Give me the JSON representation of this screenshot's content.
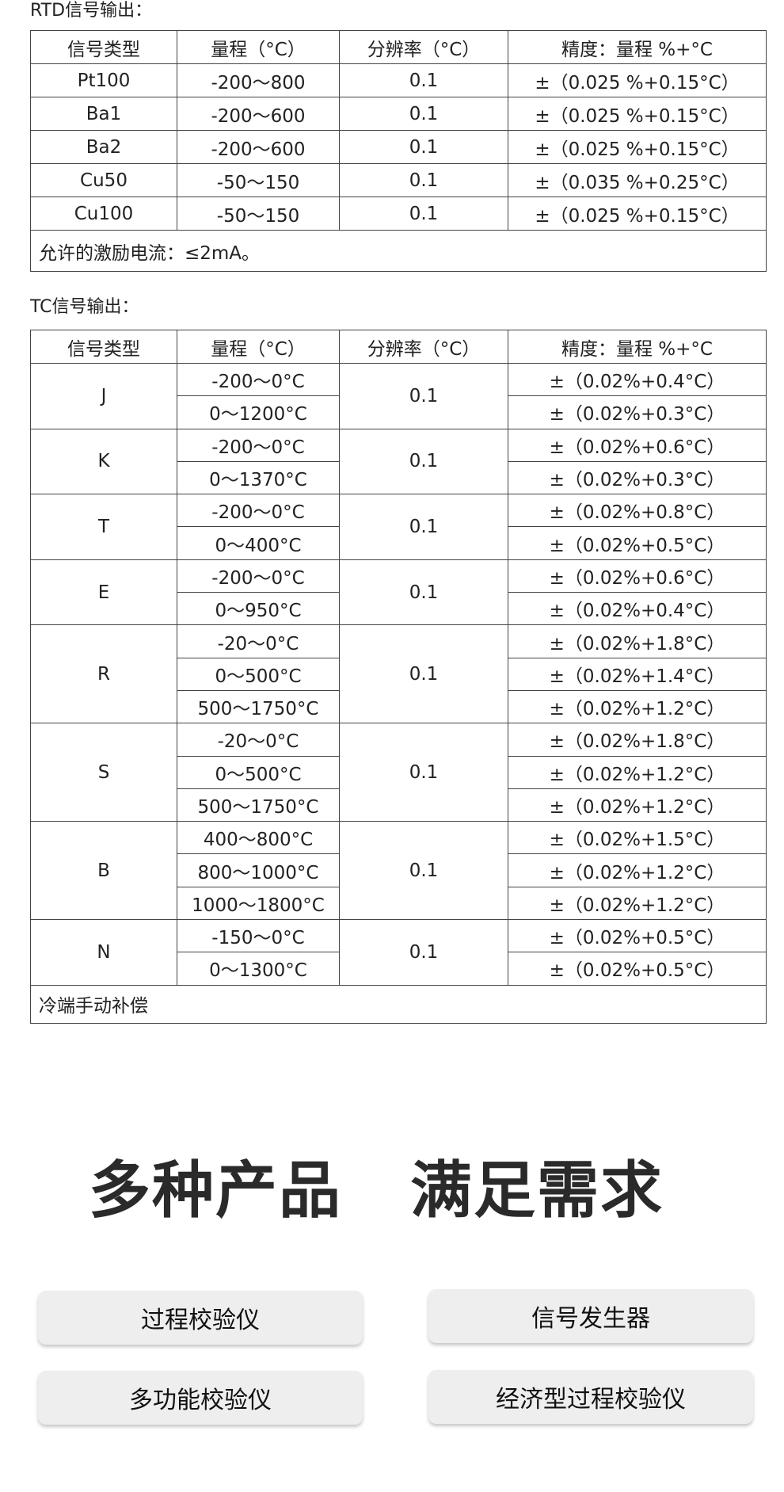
{
  "rtd": {
    "title": "RTD信号输出：",
    "headers": [
      "信号类型",
      "量程（°C）",
      "分辨率（°C）",
      "精度：量程 %+°C"
    ],
    "rows": [
      [
        "Pt100",
        "-200～800",
        "0.1",
        "±（0.025 %+0.15°C）"
      ],
      [
        "Ba1",
        "-200～600",
        "0.1",
        "±（0.025 %+0.15°C）"
      ],
      [
        "Ba2",
        "-200～600",
        "0.1",
        "±（0.025 %+0.15°C）"
      ],
      [
        "Cu50",
        "-50～150",
        "0.1",
        "±（0.035 %+0.25°C）"
      ],
      [
        "Cu100",
        "-50～150",
        "0.1",
        "±（0.025 %+0.15°C）"
      ]
    ],
    "note": "允许的激励电流：≤2mA。"
  },
  "tc": {
    "title": "TC信号输出：",
    "headers": [
      "信号类型",
      "量程（°C）",
      "分辨率（°C）",
      "精度：量程 %+°C"
    ],
    "groups": [
      {
        "type": "J",
        "resolution": "0.1",
        "ranges": [
          [
            "-200～0°C",
            "±（0.02%+0.4°C）"
          ],
          [
            "0～1200°C",
            "±（0.02%+0.3°C）"
          ]
        ]
      },
      {
        "type": "K",
        "resolution": "0.1",
        "ranges": [
          [
            "-200～0°C",
            "±（0.02%+0.6°C）"
          ],
          [
            "0～1370°C",
            "±（0.02%+0.3°C）"
          ]
        ]
      },
      {
        "type": "T",
        "resolution": "0.1",
        "ranges": [
          [
            "-200～0°C",
            "±（0.02%+0.8°C）"
          ],
          [
            "0～400°C",
            "±（0.02%+0.5°C）"
          ]
        ]
      },
      {
        "type": "E",
        "resolution": "0.1",
        "ranges": [
          [
            "-200～0°C",
            "±（0.02%+0.6°C）"
          ],
          [
            "0～950°C",
            "±（0.02%+0.4°C）"
          ]
        ]
      },
      {
        "type": "R",
        "resolution": "0.1",
        "ranges": [
          [
            "-20～0°C",
            "±（0.02%+1.8°C）"
          ],
          [
            "0～500°C",
            "±（0.02%+1.4°C）"
          ],
          [
            "500～1750°C",
            "±（0.02%+1.2°C）"
          ]
        ]
      },
      {
        "type": "S",
        "resolution": "0.1",
        "ranges": [
          [
            "-20～0°C",
            "±（0.02%+1.8°C）"
          ],
          [
            "0～500°C",
            "±（0.02%+1.2°C）"
          ],
          [
            "500～1750°C",
            "±（0.02%+1.2°C）"
          ]
        ]
      },
      {
        "type": "B",
        "resolution": "0.1",
        "ranges": [
          [
            "400～800°C",
            "±（0.02%+1.5°C）"
          ],
          [
            "800～1000°C",
            "±（0.02%+1.2°C）"
          ],
          [
            "1000～1800°C",
            "±（0.02%+1.2°C）"
          ]
        ]
      },
      {
        "type": "N",
        "resolution": "0.1",
        "ranges": [
          [
            "-150～0°C",
            "±（0.02%+0.5°C）"
          ],
          [
            "0～1300°C",
            "±（0.02%+0.5°C）"
          ]
        ]
      }
    ],
    "note": "冷端手动补偿"
  },
  "headline": {
    "part1": "多种产品",
    "part2": "满足需求"
  },
  "products": [
    "过程校验仪",
    "信号发生器",
    "多功能校验仪",
    "经济型过程校验仪"
  ]
}
